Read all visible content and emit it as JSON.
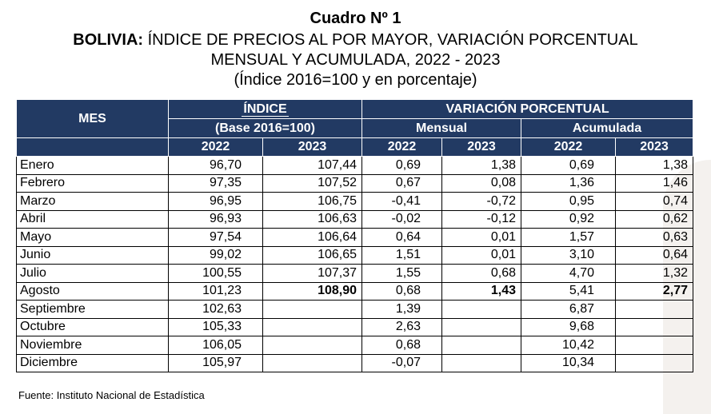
{
  "header": {
    "title": "Cuadro Nº 1",
    "subtitle_bold": "BOLIVIA:",
    "subtitle_rest": " ÍNDICE DE PRECIOS AL POR MAYOR, VARIACIÓN PORCENTUAL",
    "subtitle_line2": "MENSUAL Y ACUMULADA, 2022 - 2023",
    "subtitle_line3": "(Índice 2016=100 y en porcentaje)"
  },
  "table": {
    "mes_label": "MES",
    "indice_label": "ÍNDICE",
    "base_label": "(Base 2016=100)",
    "variacion_label": "VARIACIÓN PORCENTUAL",
    "mensual_label": "Mensual",
    "acumulada_label": "Acumulada",
    "years": [
      "2022",
      "2023",
      "2022",
      "2023",
      "2022",
      "2023"
    ],
    "rows": [
      [
        "Enero",
        "96,70",
        "107,44",
        "0,69",
        "1,38",
        "0,69",
        "1,38"
      ],
      [
        "Febrero",
        "97,35",
        "107,52",
        "0,67",
        "0,08",
        "1,36",
        "1,46"
      ],
      [
        "Marzo",
        "96,95",
        "106,75",
        "-0,41",
        "-0,72",
        "0,95",
        "0,74"
      ],
      [
        "Abril",
        "96,93",
        "106,63",
        "-0,02",
        "-0,12",
        "0,92",
        "0,62"
      ],
      [
        "Mayo",
        "97,54",
        "106,64",
        "0,64",
        "0,01",
        "1,57",
        "0,63"
      ],
      [
        "Junio",
        "99,02",
        "106,65",
        "1,51",
        "0,01",
        "3,10",
        "0,64"
      ],
      [
        "Julio",
        "100,55",
        "107,37",
        "1,55",
        "0,68",
        "4,70",
        "1,32"
      ],
      [
        "Agosto",
        "101,23",
        "108,90",
        "0,68",
        "1,43",
        "5,41",
        "2,77"
      ],
      [
        "Septiembre",
        "102,63",
        "",
        "1,39",
        "",
        "6,87",
        ""
      ],
      [
        "Octubre",
        "105,33",
        "",
        "2,63",
        "",
        "9,68",
        ""
      ],
      [
        "Noviembre",
        "106,05",
        "",
        "0,68",
        "",
        "10,42",
        ""
      ],
      [
        "Diciembre",
        "105,97",
        "",
        "-0,07",
        "",
        "10,34",
        ""
      ]
    ]
  },
  "footer": {
    "source": "Fuente: Instituto Nacional de Estadística"
  },
  "colors": {
    "header_bg": "#223a63"
  }
}
